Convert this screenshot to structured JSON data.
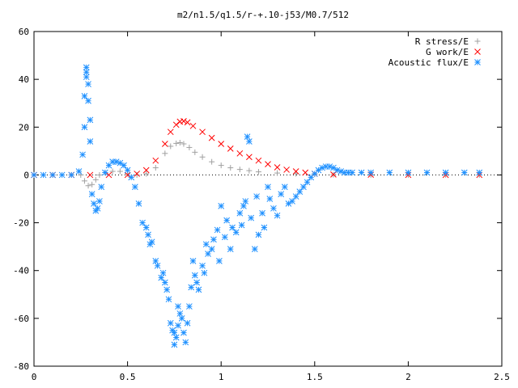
{
  "chart_data": {
    "type": "scatter",
    "title": "m2/n1.5/q1.5/r-+.10-j53/M0.7/512",
    "xlabel": "",
    "ylabel": "",
    "xlim": [
      0,
      2.5
    ],
    "ylim": [
      -80,
      60
    ],
    "xticks": [
      0,
      0.5,
      1,
      1.5,
      2,
      2.5
    ],
    "yticks": [
      -80,
      -60,
      -40,
      -20,
      0,
      20,
      40,
      60
    ],
    "xtick_labels": [
      "0",
      "0.5",
      "1",
      "1.5",
      "2",
      "2.5"
    ],
    "ytick_labels": [
      "-80",
      "-60",
      "-40",
      "-20",
      "0",
      "20",
      "40",
      "60"
    ],
    "grid": false,
    "legend_position": "top-right",
    "series": [
      {
        "name": "R stress/E",
        "marker": "plus",
        "color": "#a0a0a0",
        "x": [
          0.0,
          0.1,
          0.2,
          0.25,
          0.27,
          0.29,
          0.31,
          0.33,
          0.35,
          0.38,
          0.42,
          0.46,
          0.5,
          0.55,
          0.6,
          0.65,
          0.7,
          0.73,
          0.76,
          0.78,
          0.8,
          0.83,
          0.86,
          0.9,
          0.95,
          1.0,
          1.05,
          1.1,
          1.15,
          1.2,
          1.3,
          1.4,
          1.5,
          1.6,
          1.8,
          2.0,
          2.2,
          2.38
        ],
        "y": [
          0,
          0,
          0,
          0,
          -2.5,
          -4.5,
          -4,
          -2,
          0,
          1,
          1.5,
          1.5,
          0.5,
          0,
          0.5,
          3,
          9,
          12,
          13.2,
          13.5,
          13,
          11.5,
          9.5,
          7.5,
          5.5,
          4,
          3,
          2.3,
          1.8,
          1.3,
          0.8,
          0.5,
          0.3,
          0.1,
          0,
          0,
          0,
          0
        ]
      },
      {
        "name": "G work/E",
        "marker": "cross",
        "color": "#ff0000",
        "x": [
          0.0,
          0.1,
          0.2,
          0.3,
          0.4,
          0.5,
          0.55,
          0.6,
          0.65,
          0.7,
          0.73,
          0.76,
          0.78,
          0.8,
          0.82,
          0.85,
          0.9,
          0.95,
          1.0,
          1.05,
          1.1,
          1.15,
          1.2,
          1.25,
          1.3,
          1.35,
          1.4,
          1.45,
          1.5,
          1.6,
          1.8,
          2.0,
          2.2,
          2.38
        ],
        "y": [
          0,
          0,
          0,
          0,
          0,
          0,
          0.5,
          2,
          6,
          13,
          18,
          21,
          22.3,
          22.5,
          22,
          20.5,
          18,
          15.5,
          13,
          11,
          9,
          7.5,
          6,
          4.5,
          3.2,
          2.2,
          1.5,
          1,
          0.5,
          0.2,
          0.1,
          0,
          0,
          0
        ]
      },
      {
        "name": "Acoustic flux/E",
        "marker": "star",
        "color": "#1e90ff",
        "x": [
          0.0,
          0.05,
          0.1,
          0.15,
          0.2,
          0.24,
          0.26,
          0.27,
          0.27,
          0.28,
          0.28,
          0.28,
          0.29,
          0.29,
          0.3,
          0.3,
          0.31,
          0.32,
          0.33,
          0.34,
          0.35,
          0.36,
          0.38,
          0.4,
          0.42,
          0.44,
          0.46,
          0.48,
          0.5,
          0.52,
          0.54,
          0.56,
          0.58,
          0.6,
          0.61,
          0.62,
          0.63,
          0.65,
          0.66,
          0.68,
          0.69,
          0.7,
          0.71,
          0.72,
          0.73,
          0.74,
          0.75,
          0.75,
          0.76,
          0.77,
          0.77,
          0.78,
          0.79,
          0.8,
          0.81,
          0.82,
          0.83,
          0.84,
          0.85,
          0.86,
          0.87,
          0.88,
          0.9,
          0.91,
          0.92,
          0.93,
          0.95,
          0.96,
          0.98,
          0.99,
          1.0,
          1.02,
          1.03,
          1.05,
          1.06,
          1.08,
          1.1,
          1.11,
          1.12,
          1.13,
          1.14,
          1.15,
          1.16,
          1.18,
          1.19,
          1.2,
          1.22,
          1.23,
          1.25,
          1.26,
          1.28,
          1.3,
          1.32,
          1.34,
          1.36,
          1.38,
          1.4,
          1.42,
          1.44,
          1.46,
          1.48,
          1.5,
          1.52,
          1.54,
          1.56,
          1.58,
          1.6,
          1.62,
          1.64,
          1.66,
          1.68,
          1.7,
          1.75,
          1.8,
          1.9,
          2.0,
          2.1,
          2.2,
          2.3,
          2.38
        ],
        "y": [
          0,
          0,
          0,
          0,
          0,
          1.5,
          8.5,
          20,
          33,
          45,
          43,
          41,
          38,
          31,
          23,
          14,
          -8,
          -12,
          -15,
          -14,
          -11,
          -5,
          1,
          4,
          5.5,
          5.5,
          5,
          4,
          2,
          -1,
          -5,
          -12,
          -20,
          -22,
          -25,
          -29,
          -28,
          -36,
          -38,
          -43,
          -41,
          -45,
          -48,
          -52,
          -62,
          -65,
          -66,
          -71,
          -68,
          -63,
          -55,
          -58,
          -60,
          -66,
          -70,
          -62,
          -55,
          -47,
          -36,
          -42,
          -45,
          -48,
          -38,
          -41,
          -29,
          -33,
          -31,
          -27,
          -23,
          -36,
          -13,
          -26,
          -19,
          -31,
          -22,
          -24,
          -16,
          -21,
          -13,
          -11,
          16,
          14,
          -18,
          -31,
          -9,
          -25,
          -16,
          -22,
          -5,
          -10,
          -14,
          -17,
          -8,
          -5,
          -12,
          -11,
          -9,
          -7,
          -5,
          -3,
          -1,
          0.5,
          2,
          3,
          3.5,
          3.5,
          3,
          2,
          1.5,
          1,
          1,
          1,
          1,
          1,
          1,
          1,
          1,
          1,
          1,
          1
        ]
      }
    ]
  }
}
